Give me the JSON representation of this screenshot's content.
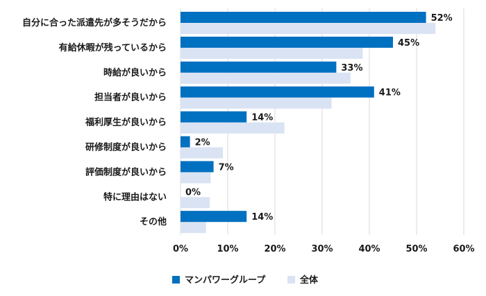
{
  "chart_data": {
    "type": "bar",
    "orientation": "horizontal",
    "title": "",
    "xlabel": "",
    "ylabel": "",
    "xlim": [
      0,
      60
    ],
    "ticks": [
      0,
      10,
      20,
      30,
      40,
      50,
      60
    ],
    "tick_suffix": "%",
    "grid": true,
    "legend_position": "bottom",
    "categories": [
      "自分に合った派遣先が多そうだから",
      "有給休暇が残っているから",
      "時給が良いから",
      "担当者が良いから",
      "福利厚生が良いから",
      "研修制度が良いから",
      "評価制度が良いから",
      "特に理由はない",
      "その他"
    ],
    "series": [
      {
        "name": "マンパワーグループ",
        "color": "#0070c0",
        "values": [
          52,
          45,
          33,
          41,
          14,
          2,
          7,
          0,
          14
        ],
        "labels": [
          "52%",
          "45%",
          "33%",
          "41%",
          "14%",
          "2%",
          "7%",
          "0%",
          "14%"
        ]
      },
      {
        "name": "全体",
        "color": "#dae3f3",
        "values": [
          54,
          38.6,
          36,
          32,
          22,
          9,
          6.4,
          6.2,
          5.4
        ]
      }
    ]
  }
}
